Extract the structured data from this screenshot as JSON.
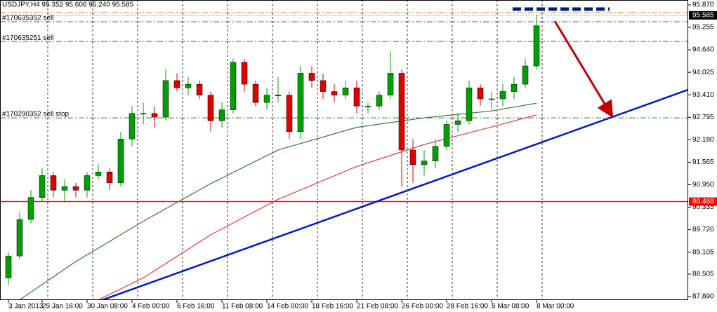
{
  "chart_data": {
    "type": "candlestick",
    "title": "USDJPY,H4  95.352 95.606 95.240 95.585",
    "categories": [
      "3 Jan 2013",
      null,
      null,
      "25 Jan 16:00",
      null,
      null,
      null,
      "30 Jan 08:00",
      null,
      null,
      null,
      "4 Feb 00:00",
      null,
      null,
      null,
      "6 Feb 16:00",
      null,
      null,
      null,
      "11 Feb 08:00",
      null,
      null,
      null,
      "14 Feb 00:00",
      null,
      null,
      null,
      "18 Feb 16:00",
      null,
      null,
      null,
      "21 Feb 08:00",
      null,
      null,
      null,
      "26 Feb 00:00",
      null,
      null,
      null,
      "28 Feb 16:00",
      null,
      null,
      null,
      "5 Mar 08:00",
      null,
      null,
      null,
      "8 Mar 00:00"
    ],
    "open": [
      88.4,
      89.0,
      90.0,
      90.6,
      91.2,
      90.8,
      90.9,
      90.8,
      91.2,
      91.3,
      91.0,
      92.2,
      92.9,
      92.9,
      92.8,
      93.8,
      93.6,
      93.7,
      93.4,
      92.7,
      93.0,
      94.3,
      93.7,
      93.2,
      93.4,
      93.4,
      92.4,
      94.0,
      93.8,
      93.5,
      93.4,
      93.6,
      93.1,
      93.1,
      93.4,
      94.0,
      91.9,
      91.5,
      91.6,
      92.0,
      92.6,
      92.7,
      93.6,
      93.3,
      93.3,
      93.5,
      93.7,
      94.2
    ],
    "high": [
      89.1,
      90.2,
      90.8,
      91.4,
      91.3,
      91.1,
      91.0,
      91.3,
      91.5,
      91.4,
      92.4,
      93.1,
      93.2,
      93.1,
      94.1,
      94.0,
      93.9,
      93.8,
      93.5,
      93.2,
      94.4,
      94.4,
      93.8,
      93.6,
      93.9,
      93.5,
      94.2,
      94.2,
      94.0,
      93.7,
      93.8,
      93.8,
      93.2,
      93.5,
      94.6,
      94.1,
      92.2,
      91.9,
      92.2,
      92.7,
      92.9,
      93.8,
      93.7,
      93.5,
      93.7,
      93.9,
      94.4,
      95.6
    ],
    "low": [
      88.2,
      88.9,
      89.9,
      90.5,
      90.6,
      90.5,
      90.6,
      90.6,
      91.1,
      90.8,
      90.9,
      92.0,
      92.6,
      92.5,
      92.7,
      93.5,
      93.4,
      93.3,
      92.4,
      92.5,
      92.9,
      93.5,
      93.1,
      93.0,
      93.2,
      92.2,
      92.2,
      93.6,
      93.3,
      93.2,
      93.3,
      92.9,
      92.9,
      93.0,
      93.3,
      90.9,
      91.0,
      91.2,
      91.4,
      91.9,
      92.4,
      92.6,
      93.1,
      93.0,
      93.1,
      93.3,
      93.6,
      94.1
    ],
    "close": [
      89.0,
      90.0,
      90.6,
      91.2,
      90.8,
      90.9,
      90.8,
      91.2,
      91.3,
      91.0,
      92.2,
      92.9,
      92.9,
      92.8,
      93.8,
      93.6,
      93.7,
      93.4,
      92.7,
      93.0,
      94.3,
      93.7,
      93.2,
      93.4,
      93.4,
      92.4,
      94.0,
      93.8,
      93.5,
      93.4,
      93.6,
      93.1,
      93.1,
      93.4,
      94.0,
      91.9,
      91.5,
      91.6,
      92.0,
      92.6,
      92.7,
      93.6,
      93.3,
      93.3,
      93.5,
      93.7,
      94.2,
      95.3
    ],
    "up_color": "#00a000",
    "down_color": "#e00000",
    "series": [
      {
        "x": [
          1,
          6,
          12,
          18,
          24,
          31,
          37,
          43,
          47
        ],
        "values": [
          87.8,
          88.85,
          89.95,
          90.98,
          91.9,
          92.52,
          92.78,
          92.97,
          93.18
        ],
        "color": "#2e7d32"
      },
      {
        "x": [
          8,
          12,
          18,
          24,
          31,
          37,
          43,
          47
        ],
        "values": [
          87.8,
          88.4,
          89.58,
          90.55,
          91.45,
          92.05,
          92.53,
          92.86
        ],
        "color": "#e53935"
      }
    ],
    "trendline": {
      "x": [
        8.3,
        60.5
      ],
      "values": [
        87.79,
        93.55
      ],
      "color": "#0018d0"
    },
    "orders": [
      {
        "label": "#170635352 sell",
        "value": 95.41
      },
      {
        "label": "#170635251 sell",
        "value": 94.87
      },
      {
        "label": "#170290352 sell stop",
        "value": 92.78
      }
    ],
    "order_color": "#2e7d32",
    "levels": [
      {
        "value": 95.66,
        "color": "#f08030"
      }
    ],
    "current_price": 95.585,
    "horizontal_line": {
      "value": 90.488,
      "color": "#ff0000"
    },
    "ylim": [
      87.794,
      96.004
    ],
    "yticks": [
      {
        "value": 95.87,
        "label": "95.870"
      },
      95.255,
      {
        "value": 94.64,
        "label": "94.640"
      },
      94.025,
      {
        "value": 93.41,
        "label": "93.410"
      },
      92.795,
      {
        "value": 92.18,
        "label": "92.180"
      },
      91.565,
      {
        "value": 90.95,
        "label": "90.950"
      },
      90.335,
      {
        "value": 89.72,
        "label": "89.720"
      },
      89.105,
      88.505,
      {
        "value": 87.89,
        "label": "87.890"
      }
    ]
  }
}
